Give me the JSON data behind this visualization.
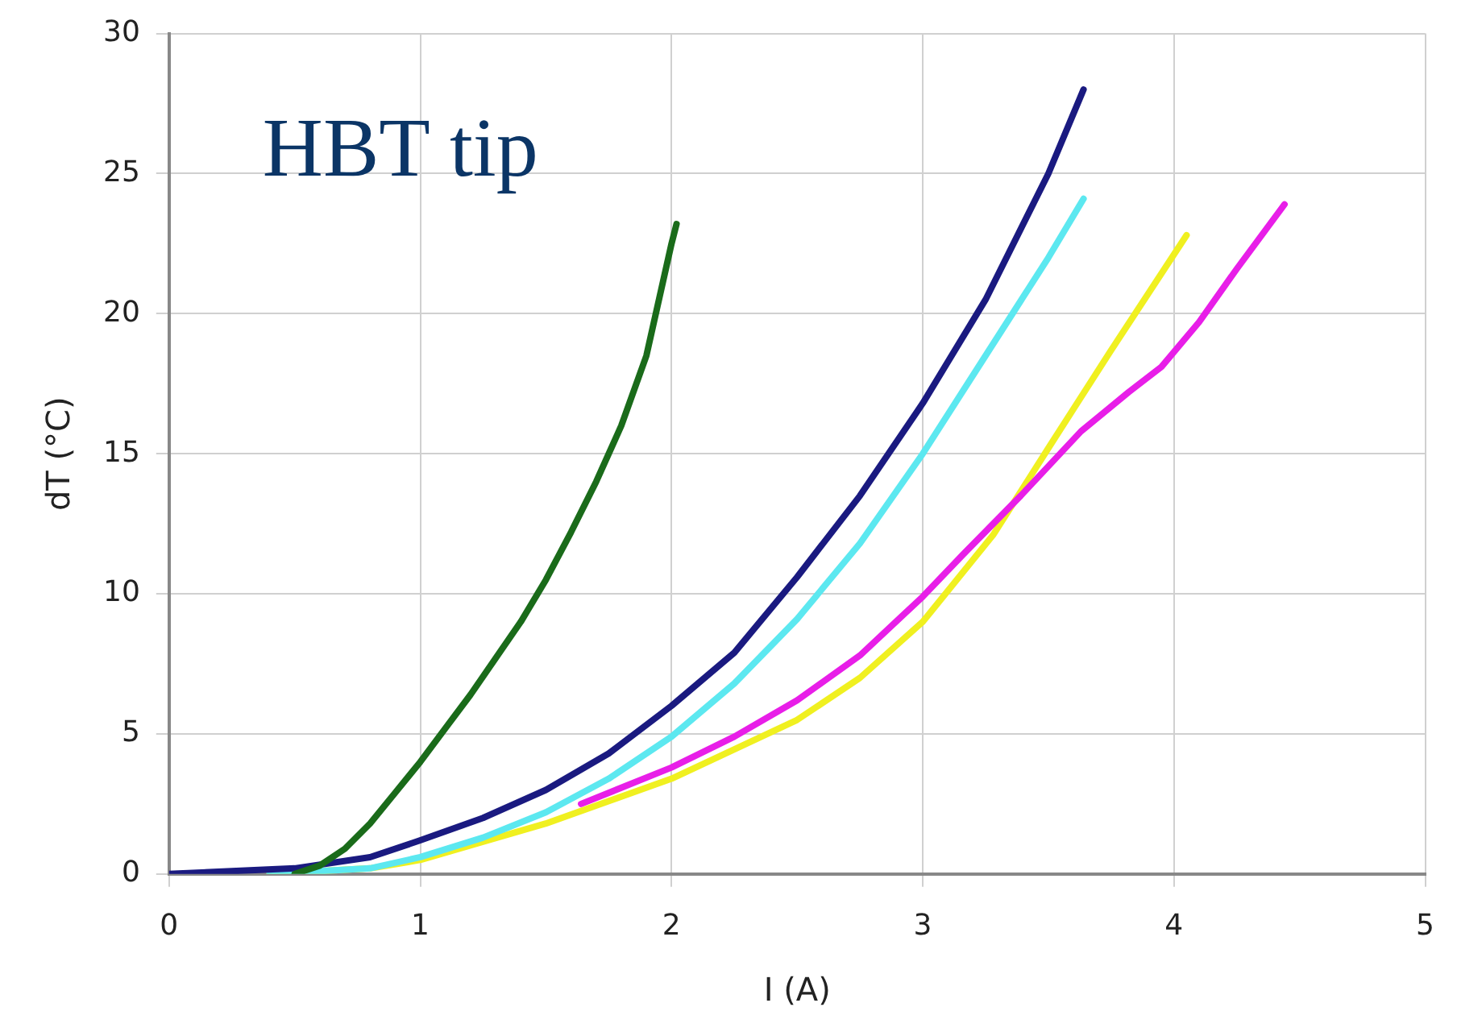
{
  "chart_data": {
    "type": "line",
    "annotations": [
      "HBT tip"
    ],
    "xlabel": "I (A)",
    "ylabel": "dT (°C)",
    "xlim": [
      0,
      5
    ],
    "ylim": [
      0,
      30
    ],
    "xticks": [
      0,
      1,
      2,
      3,
      4,
      5
    ],
    "yticks": [
      0,
      5,
      10,
      15,
      20,
      25,
      30
    ],
    "grid": true,
    "legend": false,
    "marker": "none",
    "line_style": "solid",
    "series": [
      {
        "color": "#1a6b1a",
        "x": [
          0.5,
          0.6,
          0.7,
          0.8,
          0.9,
          1.0,
          1.1,
          1.2,
          1.3,
          1.4,
          1.5,
          1.6,
          1.7,
          1.8,
          1.9,
          2.0,
          2.02
        ],
        "values": [
          0,
          0.3,
          0.9,
          1.8,
          2.9,
          4.0,
          5.2,
          6.4,
          7.7,
          9.0,
          10.5,
          12.2,
          14.0,
          16.0,
          18.5,
          22.5,
          23.2
        ]
      },
      {
        "color": "#1a1a80",
        "x": [
          0,
          0.5,
          0.8,
          1,
          1.25,
          1.5,
          1.75,
          2,
          2.25,
          2.5,
          2.75,
          3,
          3.25,
          3.5,
          3.64
        ],
        "values": [
          0,
          0.2,
          0.6,
          1.2,
          2,
          3,
          4.3,
          6,
          7.9,
          10.6,
          13.5,
          16.8,
          20.5,
          25,
          28
        ]
      },
      {
        "color": "#5ce8f0",
        "x": [
          0.4,
          0.8,
          1,
          1.25,
          1.5,
          1.75,
          2,
          2.25,
          2.5,
          2.75,
          3,
          3.25,
          3.5,
          3.64
        ],
        "values": [
          0,
          0.2,
          0.6,
          1.3,
          2.2,
          3.4,
          4.9,
          6.8,
          9.1,
          11.8,
          15,
          18.5,
          22,
          24.1
        ]
      },
      {
        "color": "#e81ee8",
        "x": [
          1.64,
          2,
          2.25,
          2.5,
          2.75,
          3,
          3.16,
          3.39,
          3.63,
          3.82,
          3.95,
          4.1,
          4.25,
          4.44
        ],
        "values": [
          2.5,
          3.8,
          4.9,
          6.2,
          7.8,
          9.9,
          11.4,
          13.5,
          15.8,
          17.2,
          18.1,
          19.7,
          21.6,
          23.9
        ]
      },
      {
        "color": "#f0f020",
        "x": [
          0.4,
          0.8,
          1,
          1.5,
          2,
          2.5,
          2.75,
          3,
          3.28,
          3.5,
          3.75,
          4.05
        ],
        "values": [
          0,
          0.2,
          0.5,
          1.8,
          3.4,
          5.5,
          7,
          9,
          12.1,
          15.2,
          18.7,
          22.8
        ]
      }
    ]
  }
}
